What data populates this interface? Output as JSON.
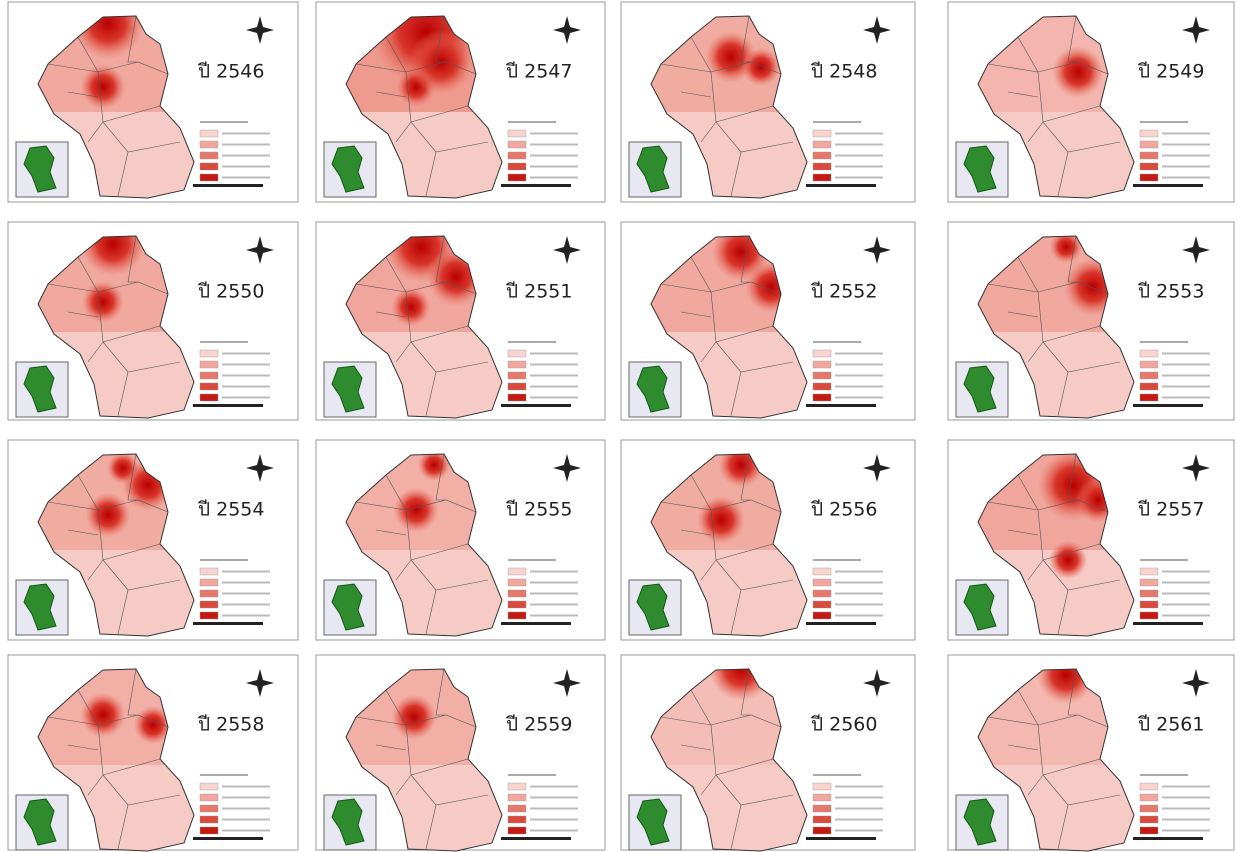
{
  "panels": [
    {
      "title": "ปี 2546"
    },
    {
      "title": "ปี 2547"
    },
    {
      "title": "ปี 2548"
    },
    {
      "title": "ปี 2549"
    },
    {
      "title": "ปี 2550"
    },
    {
      "title": "ปี 2551"
    },
    {
      "title": "ปี 2552"
    },
    {
      "title": "ปี 2553"
    },
    {
      "title": "ปี 2554"
    },
    {
      "title": "ปี 2555"
    },
    {
      "title": "ปี 2556"
    },
    {
      "title": "ปี 2557"
    },
    {
      "title": "ปี 2558"
    },
    {
      "title": "ปี 2559"
    },
    {
      "title": "ปี 2560"
    },
    {
      "title": "ปี 2561"
    }
  ]
}
